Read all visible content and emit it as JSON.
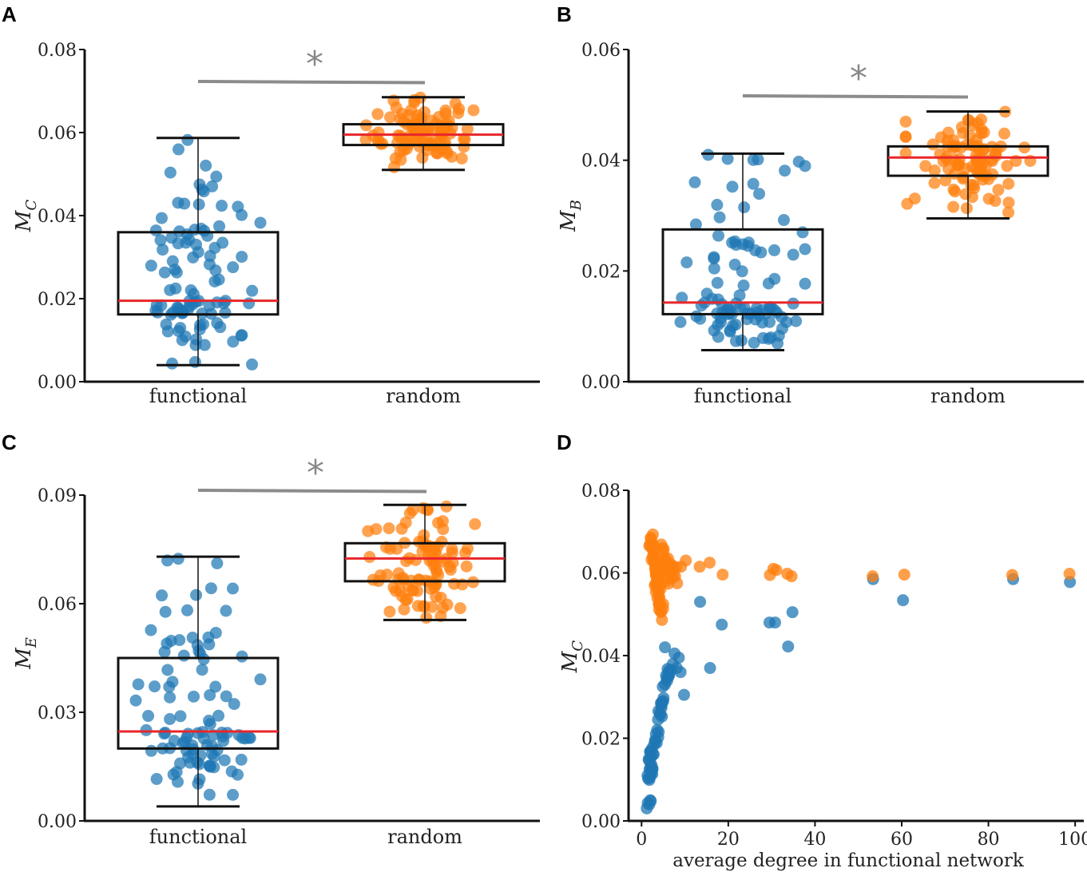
{
  "figure": {
    "colors": {
      "functional": "#1f77b4",
      "random": "#ff7f0e",
      "median": "#e8262a",
      "sig_bar": "#8c8c8c"
    }
  },
  "chart_data": [
    {
      "type": "box",
      "panel": "A",
      "ylabel": "M",
      "ylabel_sub": "C",
      "ylim": [
        0,
        0.08
      ],
      "yticks": [
        0,
        0.02,
        0.04,
        0.06,
        0.08
      ],
      "ytick_labels": [
        "0.00",
        "0.02",
        "0.04",
        "0.06",
        "0.08"
      ],
      "categories": [
        "functional",
        "random"
      ],
      "significance": "*",
      "boxes": [
        {
          "name": "functional",
          "min": 0.004,
          "q1": 0.0162,
          "median": 0.0195,
          "q3": 0.036,
          "max": 0.0587
        },
        {
          "name": "random",
          "min": 0.051,
          "q1": 0.057,
          "median": 0.0595,
          "q3": 0.062,
          "max": 0.0685
        }
      ]
    },
    {
      "type": "box",
      "panel": "B",
      "ylabel": "M",
      "ylabel_sub": "B",
      "ylim": [
        0,
        0.06
      ],
      "yticks": [
        0,
        0.02,
        0.04,
        0.06
      ],
      "ytick_labels": [
        "0.00",
        "0.02",
        "0.04",
        "0.06"
      ],
      "categories": [
        "functional",
        "random"
      ],
      "significance": "*",
      "boxes": [
        {
          "name": "functional",
          "min": 0.0057,
          "q1": 0.0122,
          "median": 0.0143,
          "q3": 0.0275,
          "max": 0.0412
        },
        {
          "name": "random",
          "min": 0.0295,
          "q1": 0.0372,
          "median": 0.0405,
          "q3": 0.0425,
          "max": 0.0488
        }
      ]
    },
    {
      "type": "box",
      "panel": "C",
      "ylabel": "M",
      "ylabel_sub": "E",
      "ylim": [
        0,
        0.09
      ],
      "yticks": [
        0,
        0.03,
        0.06,
        0.09
      ],
      "ytick_labels": [
        "0.00",
        "0.03",
        "0.06",
        "0.09"
      ],
      "categories": [
        "functional",
        "random"
      ],
      "significance": "*",
      "boxes": [
        {
          "name": "functional",
          "min": 0.004,
          "q1": 0.02,
          "median": 0.0247,
          "q3": 0.045,
          "max": 0.073
        },
        {
          "name": "random",
          "min": 0.0555,
          "q1": 0.0662,
          "median": 0.0725,
          "q3": 0.0767,
          "max": 0.0873
        }
      ]
    },
    {
      "type": "scatter",
      "panel": "D",
      "ylabel": "M",
      "ylabel_sub": "C",
      "xlabel": "average degree in functional network",
      "xlim": [
        -3,
        102
      ],
      "ylim": [
        0,
        0.08
      ],
      "xticks": [
        0,
        20,
        40,
        60,
        80,
        100
      ],
      "xtick_labels": [
        "0",
        "20",
        "40",
        "60",
        "80",
        "100"
      ],
      "yticks": [
        0,
        0.02,
        0.04,
        0.06,
        0.08
      ],
      "ytick_labels": [
        "0.00",
        "0.02",
        "0.04",
        "0.06",
        "0.08"
      ],
      "series": [
        {
          "name": "functional",
          "points": [
            [
              1.8,
              0.004
            ],
            [
              2,
              0.005
            ],
            [
              1.9,
              0.0105
            ],
            [
              2.1,
              0.012
            ],
            [
              2.3,
              0.0135
            ],
            [
              2.2,
              0.0155
            ],
            [
              2.6,
              0.016
            ],
            [
              2.4,
              0.0175
            ],
            [
              2.9,
              0.0185
            ],
            [
              3.1,
              0.0195
            ],
            [
              3.3,
              0.021
            ],
            [
              3.6,
              0.022
            ],
            [
              3.8,
              0.0245
            ],
            [
              4.2,
              0.026
            ],
            [
              4.6,
              0.028
            ],
            [
              5,
              0.029
            ],
            [
              5.4,
              0.033
            ],
            [
              5.8,
              0.0345
            ],
            [
              6.2,
              0.036
            ],
            [
              6.8,
              0.0365
            ],
            [
              7.2,
              0.038
            ],
            [
              8.1,
              0.037
            ],
            [
              9,
              0.036
            ],
            [
              9.8,
              0.0305
            ],
            [
              5.4,
              0.042
            ],
            [
              7.6,
              0.0405
            ],
            [
              8.6,
              0.0395
            ],
            [
              15.8,
              0.037
            ],
            [
              13.5,
              0.053
            ],
            [
              18.5,
              0.0475
            ],
            [
              29.5,
              0.048
            ],
            [
              30.8,
              0.048
            ],
            [
              33.8,
              0.0422
            ],
            [
              34.8,
              0.0505
            ],
            [
              53.4,
              0.0585
            ],
            [
              60.3,
              0.0534
            ],
            [
              85.7,
              0.0585
            ],
            [
              98.8,
              0.0578
            ]
          ]
        },
        {
          "name": "random",
          "points": [
            [
              2.1,
              0.0685
            ],
            [
              2.4,
              0.066
            ],
            [
              2.6,
              0.064
            ],
            [
              2.9,
              0.0625
            ],
            [
              3.1,
              0.061
            ],
            [
              3.3,
              0.0595
            ],
            [
              3.5,
              0.058
            ],
            [
              3.7,
              0.057
            ],
            [
              3.9,
              0.0555
            ],
            [
              4.1,
              0.054
            ],
            [
              4.3,
              0.0525
            ],
            [
              4.5,
              0.0505
            ],
            [
              4.9,
              0.066
            ],
            [
              5.2,
              0.062
            ],
            [
              5.6,
              0.058
            ],
            [
              6.1,
              0.0635
            ],
            [
              6.6,
              0.0605
            ],
            [
              7.4,
              0.0595
            ],
            [
              8.2,
              0.0575
            ],
            [
              9.1,
              0.0615
            ],
            [
              10.2,
              0.063
            ],
            [
              13.4,
              0.0615
            ],
            [
              15.7,
              0.0625
            ],
            [
              18.7,
              0.0596
            ],
            [
              29.6,
              0.0595
            ],
            [
              30.4,
              0.061
            ],
            [
              31.1,
              0.0607
            ],
            [
              33.6,
              0.0598
            ],
            [
              34.6,
              0.0592
            ],
            [
              53.3,
              0.0592
            ],
            [
              60.6,
              0.0596
            ],
            [
              85.5,
              0.0595
            ],
            [
              98.7,
              0.0598
            ]
          ]
        }
      ]
    }
  ]
}
